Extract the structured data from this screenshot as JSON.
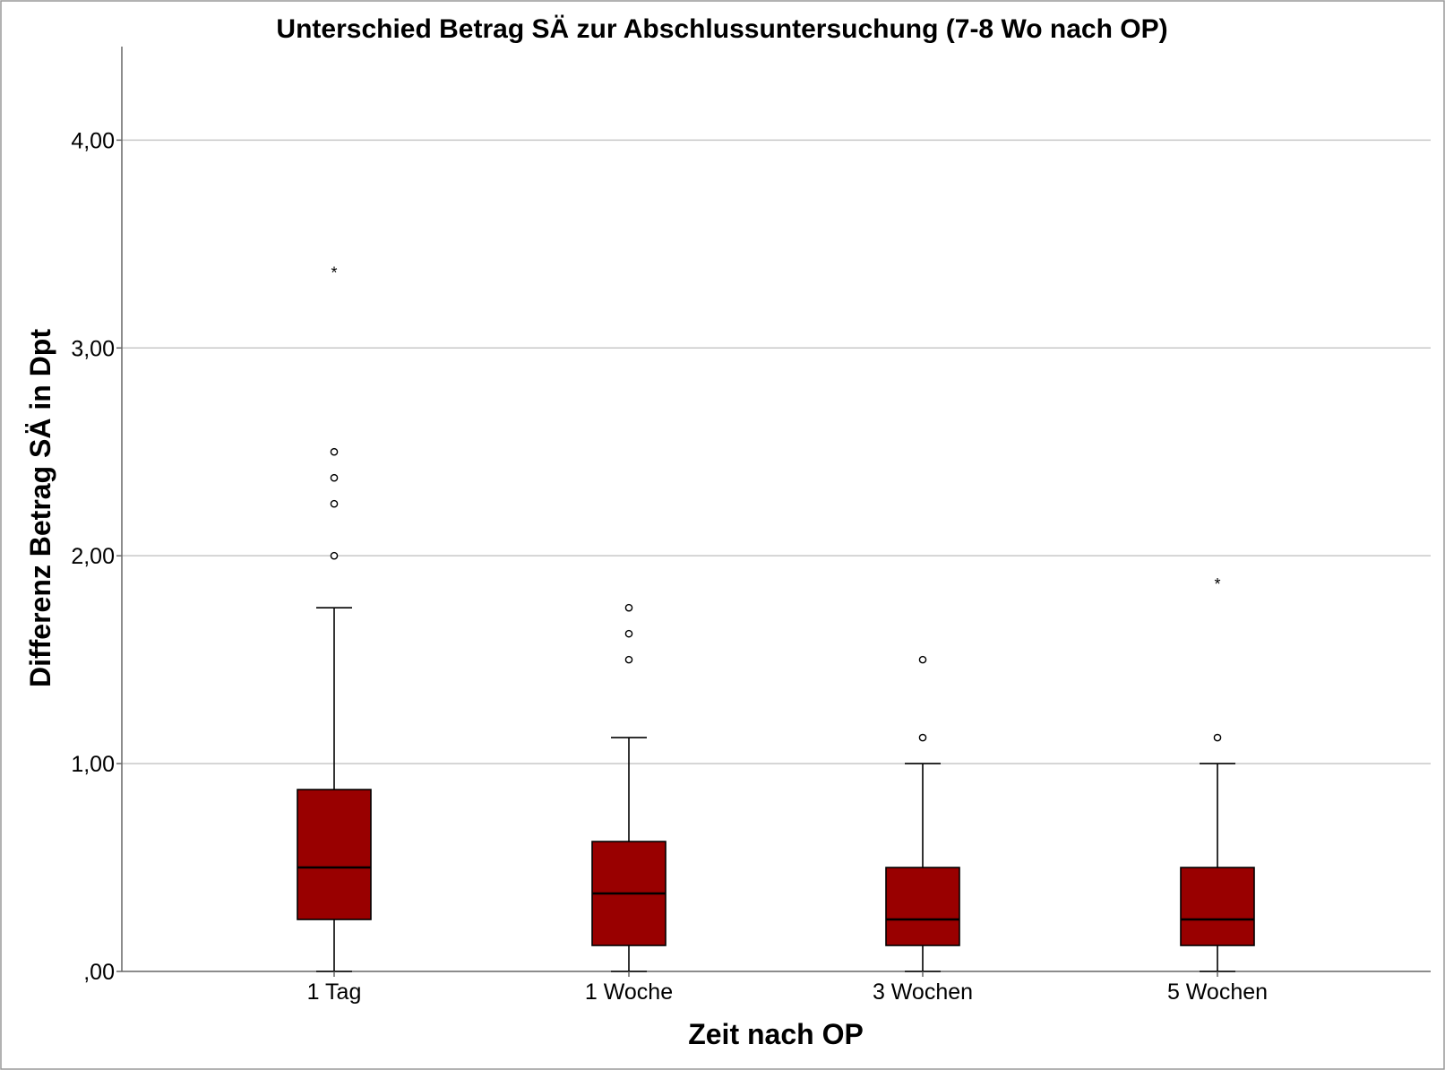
{
  "chart_data": {
    "type": "boxplot",
    "title": "Unterschied Betrag SÄ zur Abschlussuntersuchung (7-8 Wo nach OP)",
    "xlabel": "Zeit nach OP",
    "ylabel": "Differenz Betrag SÄ in Dpt",
    "ylim": [
      0,
      4.45
    ],
    "yticks": [
      0,
      1,
      2,
      3,
      4
    ],
    "ytick_labels": [
      ",00",
      "1,00",
      "2,00",
      "3,00",
      "4,00"
    ],
    "grid": "horizontal",
    "box_color": "#990000",
    "categories": [
      "1 Tag",
      "1 Woche",
      "3 Wochen",
      "5 Wochen"
    ],
    "boxes": [
      {
        "category": "1 Tag",
        "whisker_low": 0.0,
        "q1": 0.25,
        "median": 0.5,
        "q3": 0.875,
        "whisker_high": 1.75,
        "outliers": [
          2.0,
          2.25,
          2.375,
          2.5
        ],
        "extremes": [
          3.375
        ]
      },
      {
        "category": "1 Woche",
        "whisker_low": 0.0,
        "q1": 0.125,
        "median": 0.375,
        "q3": 0.625,
        "whisker_high": 1.125,
        "outliers": [
          1.5,
          1.625,
          1.75
        ],
        "extremes": []
      },
      {
        "category": "3 Wochen",
        "whisker_low": 0.0,
        "q1": 0.125,
        "median": 0.25,
        "q3": 0.5,
        "whisker_high": 1.0,
        "outliers": [
          1.125,
          1.5
        ],
        "extremes": []
      },
      {
        "category": "5 Wochen",
        "whisker_low": 0.0,
        "q1": 0.125,
        "median": 0.25,
        "q3": 0.5,
        "whisker_high": 1.0,
        "outliers": [
          1.125
        ],
        "extremes": [
          1.875
        ]
      }
    ]
  }
}
